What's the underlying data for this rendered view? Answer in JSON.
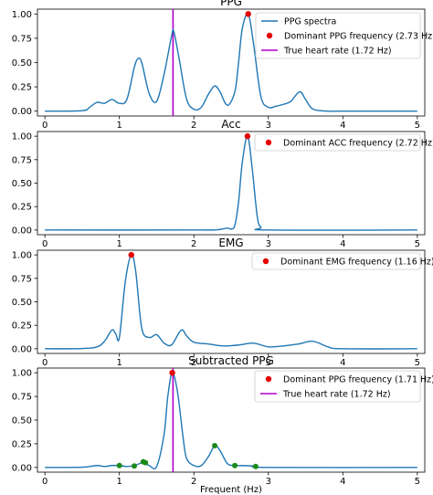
{
  "figure": {
    "xlabel": "Frequent (Hz)",
    "xticks": [
      0,
      1,
      2,
      3,
      4,
      5
    ],
    "colors": {
      "spectrum": "#1f77b4",
      "dominant": "#e60000",
      "true_hr": "#b000c8",
      "candidates": "#1a8a1a"
    }
  },
  "chart_data": [
    {
      "type": "line",
      "title": "PPG",
      "xlabel": "",
      "ylabel": "",
      "xlim": [
        -0.1,
        5.1
      ],
      "ylim": [
        -0.05,
        1.05
      ],
      "yticks": [
        "0.00",
        "0.25",
        "0.50",
        "0.75",
        "1.00"
      ],
      "grid": false,
      "legend_position": "top-right",
      "series": [
        {
          "name": "PPG spectra",
          "x": [
            0,
            0.5,
            0.6,
            0.7,
            0.8,
            0.9,
            1.0,
            1.1,
            1.2,
            1.25,
            1.3,
            1.4,
            1.5,
            1.6,
            1.7,
            1.73,
            1.8,
            1.9,
            2.0,
            2.1,
            2.2,
            2.28,
            2.35,
            2.45,
            2.55,
            2.6,
            2.65,
            2.73,
            2.8,
            2.9,
            3.0,
            3.1,
            3.2,
            3.3,
            3.42,
            3.5,
            3.6,
            3.8,
            4.0,
            5.0
          ],
          "y": [
            0,
            0.005,
            0.04,
            0.09,
            0.08,
            0.12,
            0.08,
            0.12,
            0.45,
            0.54,
            0.5,
            0.18,
            0.1,
            0.38,
            0.77,
            0.82,
            0.55,
            0.13,
            0.02,
            0.04,
            0.18,
            0.26,
            0.2,
            0.06,
            0.2,
            0.5,
            0.85,
            1.0,
            0.7,
            0.15,
            0.04,
            0.05,
            0.07,
            0.1,
            0.2,
            0.12,
            0.02,
            0.0,
            0.0,
            0.0
          ]
        }
      ],
      "dominant": {
        "label": "Dominant PPG frequency (2.73 Hz)",
        "x": 2.73,
        "y": 1.0
      },
      "true_hr": {
        "label": "True heart rate (1.72 Hz)",
        "x": 1.72
      }
    },
    {
      "type": "line",
      "title": "Acc",
      "xlabel": "",
      "ylabel": "",
      "xlim": [
        -0.1,
        5.1
      ],
      "ylim": [
        -0.05,
        1.05
      ],
      "yticks": [
        "0.00",
        "0.25",
        "0.50",
        "0.75",
        "1.00"
      ],
      "grid": false,
      "legend_position": "top-right",
      "series": [
        {
          "name": "",
          "x": [
            0,
            2.0,
            2.3,
            2.45,
            2.5,
            2.55,
            2.6,
            2.65,
            2.72,
            2.78,
            2.85,
            2.9,
            3.0,
            5.0
          ],
          "y": [
            0,
            0,
            0.002,
            0.02,
            0.01,
            0.05,
            0.3,
            0.72,
            1.0,
            0.68,
            0.15,
            0.03,
            0.0,
            0.0
          ]
        }
      ],
      "dominant": {
        "label": "Dominant ACC frequency (2.72 Hz)",
        "x": 2.72,
        "y": 1.0
      }
    },
    {
      "type": "line",
      "title": "EMG",
      "xlabel": "",
      "ylabel": "",
      "xlim": [
        -0.1,
        5.1
      ],
      "ylim": [
        -0.05,
        1.05
      ],
      "yticks": [
        "0.00",
        "0.25",
        "0.50",
        "0.75",
        "1.00"
      ],
      "grid": false,
      "legend_position": "top-right",
      "series": [
        {
          "name": "",
          "x": [
            0,
            0.5,
            0.7,
            0.8,
            0.9,
            0.95,
            1.0,
            1.08,
            1.16,
            1.22,
            1.3,
            1.4,
            1.5,
            1.6,
            1.7,
            1.8,
            1.85,
            1.9,
            2.0,
            2.2,
            2.4,
            2.6,
            2.8,
            3.0,
            3.2,
            3.4,
            3.6,
            3.8,
            4.0,
            5.0
          ],
          "y": [
            0,
            0.002,
            0.02,
            0.08,
            0.2,
            0.16,
            0.12,
            0.72,
            1.0,
            0.82,
            0.22,
            0.12,
            0.15,
            0.06,
            0.04,
            0.17,
            0.2,
            0.14,
            0.07,
            0.05,
            0.03,
            0.04,
            0.06,
            0.02,
            0.03,
            0.05,
            0.08,
            0.02,
            0.0,
            0.0
          ]
        }
      ],
      "dominant": {
        "label": "Dominant EMG frequency (1.16 Hz)",
        "x": 1.16,
        "y": 1.0
      }
    },
    {
      "type": "line",
      "title": "Subtracted PPG",
      "xlabel": "Frequent (Hz)",
      "ylabel": "",
      "xlim": [
        -0.1,
        5.1
      ],
      "ylim": [
        -0.05,
        1.05
      ],
      "yticks": [
        "0.00",
        "0.25",
        "0.50",
        "0.75",
        "1.00"
      ],
      "grid": false,
      "legend_position": "top-right",
      "series": [
        {
          "name": "",
          "x": [
            0,
            0.5,
            0.7,
            0.8,
            0.9,
            1.0,
            1.1,
            1.2,
            1.3,
            1.33,
            1.4,
            1.5,
            1.6,
            1.65,
            1.71,
            1.78,
            1.85,
            1.9,
            2.0,
            2.1,
            2.2,
            2.28,
            2.35,
            2.45,
            2.55,
            2.65,
            2.8,
            3.0,
            5.0
          ],
          "y": [
            0,
            0.002,
            0.02,
            0.01,
            0.02,
            0.02,
            0.01,
            0.02,
            0.05,
            0.055,
            0.02,
            0.01,
            0.35,
            0.75,
            1.0,
            0.8,
            0.35,
            0.1,
            0.02,
            0.02,
            0.12,
            0.23,
            0.18,
            0.04,
            0.02,
            0.02,
            0.015,
            0.0,
            0.0
          ]
        }
      ],
      "candidates": {
        "x": [
          1.0,
          1.2,
          1.32,
          1.35,
          2.28,
          2.55,
          2.83
        ],
        "y": [
          0.02,
          0.015,
          0.06,
          0.05,
          0.23,
          0.02,
          0.01
        ]
      },
      "dominant": {
        "label": "Dominant PPG frequency (1.71 Hz)",
        "x": 1.71,
        "y": 1.0
      },
      "true_hr": {
        "label": "True heart rate (1.72 Hz)",
        "x": 1.72
      }
    }
  ]
}
